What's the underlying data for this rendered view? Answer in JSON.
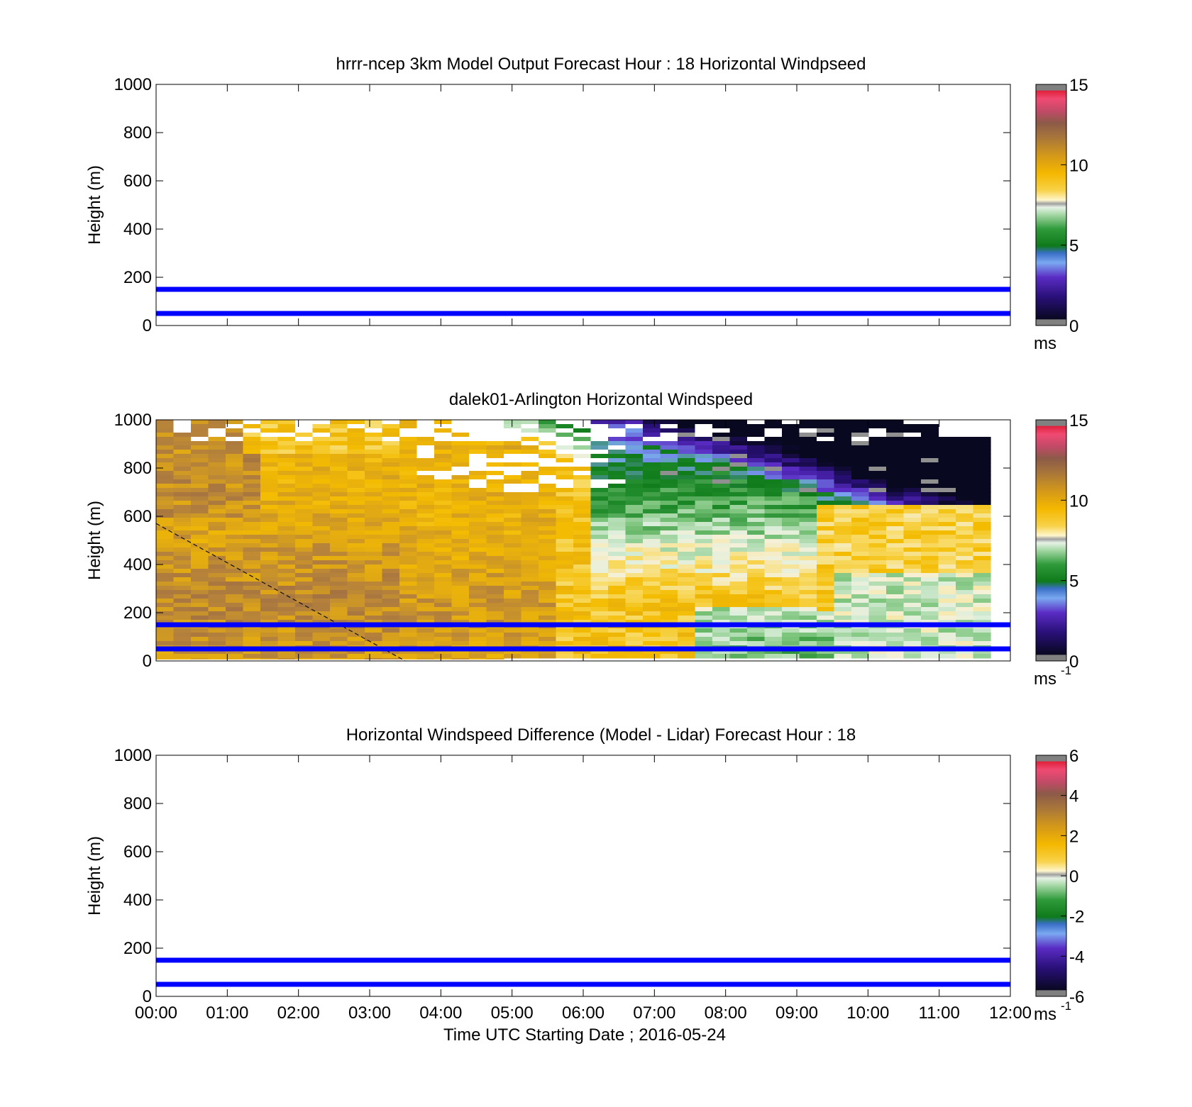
{
  "chart_data": [
    {
      "type": "heatmap",
      "title": "hrrr-ncep 3km Model Output   Forecast Hour : 18 Horizontal Windpseed",
      "ylabel": "Height (m)",
      "xlabel": "",
      "xlim": [
        0,
        12
      ],
      "ylim": [
        0,
        1000
      ],
      "yticks": [
        "0",
        "200",
        "400",
        "600",
        "800",
        "1000"
      ],
      "xticks_shown": false,
      "heatmap": "empty",
      "ref_lines_m": [
        150,
        50
      ],
      "colorbar": {
        "min": 0,
        "max": 15,
        "ticks": [
          "0",
          "5",
          "10",
          "15"
        ],
        "unit": "ms",
        "unit_exp": ""
      }
    },
    {
      "type": "heatmap",
      "title": "dalek01-Arlington  Horizontal Windspeed",
      "ylabel": "Height (m)",
      "xlabel": "",
      "xlim": [
        0,
        12
      ],
      "ylim": [
        0,
        1000
      ],
      "yticks": [
        "0",
        "200",
        "400",
        "600",
        "800",
        "1000"
      ],
      "xticks_shown": false,
      "heatmap": "lidar",
      "ref_lines_m": [
        150,
        50
      ],
      "dashed_line": [
        [
          0,
          570
        ],
        [
          3.5,
          0
        ]
      ],
      "colorbar": {
        "min": 0,
        "max": 15,
        "ticks": [
          "0",
          "5",
          "10",
          "15"
        ],
        "unit": "ms",
        "unit_exp": "-1"
      }
    },
    {
      "type": "heatmap",
      "title": "Horizontal Windspeed Difference (Model - Lidar) Forecast Hour : 18",
      "ylabel": "Height (m)",
      "xlabel": "Time UTC  Starting Date ; 2016-05-24",
      "xlim": [
        0,
        12
      ],
      "ylim": [
        0,
        1000
      ],
      "yticks": [
        "0",
        "200",
        "400",
        "600",
        "800",
        "1000"
      ],
      "xticks_shown": true,
      "xticklabels": [
        "00:00",
        "01:00",
        "02:00",
        "03:00",
        "04:00",
        "05:00",
        "06:00",
        "07:00",
        "08:00",
        "09:00",
        "10:00",
        "11:00",
        "12:00"
      ],
      "heatmap": "empty",
      "ref_lines_m": [
        150,
        50
      ],
      "colorbar": {
        "min": -6,
        "max": 6,
        "ticks": [
          "-6",
          "-4",
          "-2",
          "0",
          "2",
          "4",
          "6"
        ],
        "unit": "ms",
        "unit_exp": "-1"
      }
    }
  ],
  "colors": {
    "ref_line": "#0000ff",
    "colormap": [
      "#808080",
      "#0a0a28",
      "#2c0f7a",
      "#5520c0",
      "#7aa8f0",
      "#1f8a3a",
      "#0f7a1a",
      "#7cc77c",
      "#d6ebd6",
      "#bdbdbd",
      "#f7e7a0",
      "#f4c000",
      "#e0a000",
      "#b0803a",
      "#9a6a45",
      "#b05050",
      "#e0406a",
      "#f03060",
      "#808080"
    ]
  }
}
